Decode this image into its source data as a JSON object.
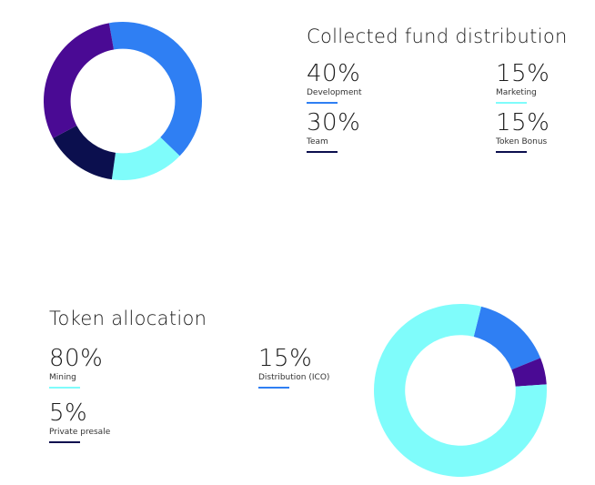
{
  "colors": {
    "deep_purple": "#4a0a94",
    "navy": "#0b0f4e",
    "cyan": "#7ffcfb",
    "blue": "#2f7ff3",
    "label_underline_dark": "#0b0f4e",
    "label_underline_blue": "#2f7ff3",
    "label_underline_cyan": "#7ffcfb"
  },
  "chart_data": [
    {
      "type": "pie",
      "variant": "donut",
      "title": "Collected fund distribution",
      "slices": [
        {
          "label": "Development",
          "value": 40,
          "display": "40%",
          "color": "#2f7ff3"
        },
        {
          "label": "Marketing",
          "value": 15,
          "display": "15%",
          "color": "#7ffcfb"
        },
        {
          "label": "Token Bonus",
          "value": 15,
          "display": "15%",
          "color": "#0b0f4e"
        },
        {
          "label": "Team",
          "value": 30,
          "display": "30%",
          "color": "#4a0a94"
        }
      ]
    },
    {
      "type": "pie",
      "variant": "donut",
      "title": "Token allocation",
      "slices": [
        {
          "label": "Distribution (ICO)",
          "value": 15,
          "display": "15%",
          "color": "#2f7ff3"
        },
        {
          "label": "Private presale",
          "value": 5,
          "display": "5%",
          "color": "#4a0a94"
        },
        {
          "label": "Mining",
          "value": 80,
          "display": "80%",
          "color": "#7ffcfb"
        }
      ]
    }
  ]
}
